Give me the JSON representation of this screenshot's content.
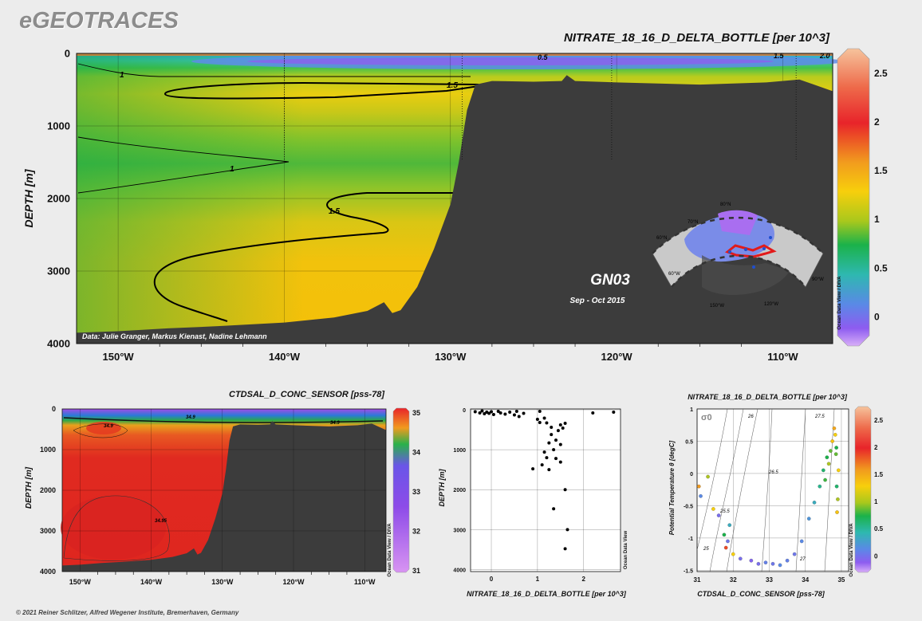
{
  "app": {
    "brand": "eGEOTRACES",
    "copyright": "© 2021 Reiner Schlitzer, Alfred Wegener Institute, Bremerhaven, Germany",
    "credit": "Ocean Data View / DIVA",
    "credit_small": "Ocean Data View"
  },
  "main_section": {
    "title": "NITRATE_18_16_D_DELTA_BOTTLE [per 10^3]",
    "ylabel": "DEPTH [m]",
    "cruise": "GN03",
    "period": "Sep - Oct 2015",
    "data_credit": "Data: Julie Granger, Markus Kienast, Nadine Lehmann",
    "contour_labels": [
      "1",
      "1.5",
      "1",
      "1.5",
      "0.5",
      "1.5",
      "2.0"
    ],
    "map_labels": [
      "80°N",
      "70°N",
      "60°N",
      "150°W",
      "120°W",
      "90°W",
      "60°W"
    ]
  },
  "salinity_section": {
    "title": "CTDSAL_D_CONC_SENSOR [pss-78]",
    "ylabel": "DEPTH [m]",
    "contour_labels": [
      "34.9",
      "34.9",
      "34.9",
      "34.95"
    ]
  },
  "scatter_panel": {
    "xlabel": "NITRATE_18_16_D_DELTA_BOTTLE [per 10^3]",
    "ylabel": "DEPTH [m]"
  },
  "ts_panel": {
    "title": "NITRATE_18_16_D_DELTA_BOTTLE [per 10^3]",
    "xlabel": "CTDSAL_D_CONC_SENSOR [pss-78]",
    "ylabel": "Potential Temperature θ [degC]",
    "sigma_label": "σ0",
    "isopycnal_labels": [
      "25",
      "25.5",
      "26",
      "26.5",
      "27",
      "27.5"
    ]
  },
  "colors": {
    "bottom": "#3c3c3c",
    "nitrate_scale": [
      "#f5b98f",
      "#e8242a",
      "#f19a1e",
      "#f7cf0c",
      "#7ebf2a",
      "#1bb24a",
      "#2eb8b0",
      "#5a89e6",
      "#8d5cf0",
      "#cf9cf8"
    ],
    "salinity_scale": [
      "#e8242a",
      "#f19a1e",
      "#29b14a",
      "#6a55e8",
      "#b55ee8",
      "#d894f2"
    ]
  },
  "chart_data": [
    {
      "id": "nitrate_section",
      "type": "heatmap",
      "title": "NITRATE_18_16_D_DELTA_BOTTLE [per 10^3]",
      "xlabel": "",
      "ylabel": "DEPTH [m]",
      "x_ticks": [
        "150°W",
        "140°W",
        "130°W",
        "120°W",
        "110°W"
      ],
      "y_ticks": [
        "0",
        "1000",
        "2000",
        "3000",
        "4000"
      ],
      "xlim": [
        -152.5,
        -107
      ],
      "ylim": [
        4000,
        0
      ],
      "colorbar": {
        "ticks": [
          "2.5",
          "2",
          "1.5",
          "1",
          "0.5",
          "0"
        ],
        "range": [
          -0.3,
          2.75
        ]
      },
      "bathymetry": [
        [
          -152.5,
          3850
        ],
        [
          -150,
          3830
        ],
        [
          -147,
          3790
        ],
        [
          -144,
          3760
        ],
        [
          -140,
          3710
        ],
        [
          -137,
          3640
        ],
        [
          -135,
          3550
        ],
        [
          -134,
          3430
        ],
        [
          -133.5,
          3580
        ],
        [
          -133,
          3540
        ],
        [
          -132,
          3220
        ],
        [
          -131,
          2700
        ],
        [
          -130,
          2080
        ],
        [
          -129.5,
          1500
        ],
        [
          -129,
          780
        ],
        [
          -128.5,
          430
        ],
        [
          -127.5,
          380
        ],
        [
          -125,
          390
        ],
        [
          -123.3,
          380
        ],
        [
          -123,
          300
        ],
        [
          -122.5,
          380
        ],
        [
          -120,
          400
        ],
        [
          -115,
          430
        ],
        [
          -111,
          400
        ],
        [
          -109,
          360
        ],
        [
          -107,
          520
        ]
      ],
      "stations_lon": [
        -140,
        -129.3,
        -120.3,
        -109.2
      ]
    },
    {
      "id": "salinity_section",
      "type": "heatmap",
      "title": "CTDSAL_D_CONC_SENSOR [pss-78]",
      "ylabel": "DEPTH [m]",
      "x_ticks": [
        "150°W",
        "140°W",
        "130°W",
        "120°W",
        "110°W"
      ],
      "y_ticks": [
        "0",
        "1000",
        "2000",
        "3000",
        "4000"
      ],
      "xlim": [
        -152.5,
        -107
      ],
      "ylim": [
        4000,
        0
      ],
      "colorbar": {
        "ticks": [
          "35",
          "34",
          "33",
          "32",
          "31"
        ],
        "range": [
          31,
          35
        ]
      }
    },
    {
      "id": "nitrate_vs_depth",
      "type": "scatter",
      "xlabel": "NITRATE_18_16_D_DELTA_BOTTLE [per 10^3]",
      "ylabel": "DEPTH [m]",
      "x_ticks": [
        "0",
        "1",
        "2"
      ],
      "y_ticks": [
        "0",
        "1000",
        "2000",
        "3000",
        "4000"
      ],
      "xlim": [
        -0.45,
        2.8
      ],
      "ylim": [
        4050,
        -20
      ],
      "points": [
        [
          -0.35,
          50
        ],
        [
          -0.25,
          80
        ],
        [
          -0.2,
          30
        ],
        [
          -0.15,
          100
        ],
        [
          -0.1,
          60
        ],
        [
          -0.05,
          90
        ],
        [
          0.0,
          50
        ],
        [
          0.05,
          120
        ],
        [
          0.15,
          40
        ],
        [
          0.2,
          80
        ],
        [
          0.3,
          110
        ],
        [
          0.4,
          60
        ],
        [
          0.5,
          130
        ],
        [
          0.55,
          40
        ],
        [
          0.6,
          170
        ],
        [
          0.7,
          90
        ],
        [
          1.05,
          40
        ],
        [
          2.2,
          80
        ],
        [
          2.65,
          60
        ],
        [
          1.0,
          240
        ],
        [
          1.05,
          320
        ],
        [
          1.15,
          210
        ],
        [
          1.2,
          330
        ],
        [
          1.3,
          440
        ],
        [
          1.5,
          380
        ],
        [
          1.6,
          340
        ],
        [
          1.55,
          460
        ],
        [
          1.45,
          520
        ],
        [
          1.3,
          620
        ],
        [
          1.4,
          760
        ],
        [
          1.25,
          830
        ],
        [
          1.5,
          870
        ],
        [
          1.35,
          1000
        ],
        [
          1.15,
          1060
        ],
        [
          1.2,
          1200
        ],
        [
          0.9,
          1480
        ],
        [
          1.1,
          1380
        ],
        [
          1.4,
          1220
        ],
        [
          1.5,
          1310
        ],
        [
          1.25,
          1500
        ],
        [
          1.6,
          2000
        ],
        [
          1.35,
          2480
        ],
        [
          1.65,
          3000
        ],
        [
          1.6,
          3480
        ]
      ]
    },
    {
      "id": "ts_diagram",
      "type": "scatter",
      "title": "NITRATE_18_16_D_DELTA_BOTTLE [per 10^3]",
      "xlabel": "CTDSAL_D_CONC_SENSOR [pss-78]",
      "ylabel": "Potential Temperature θ [degC]",
      "x_ticks": [
        "31",
        "32",
        "33",
        "34",
        "35"
      ],
      "y_ticks": [
        "1",
        "0.5",
        "0",
        "-0.5",
        "-1",
        "-1.5"
      ],
      "xlim": [
        31,
        35.2
      ],
      "ylim": [
        -1.52,
        1.0
      ],
      "colorbar": {
        "ticks": [
          "2.5",
          "2",
          "1.5",
          "1",
          "0.5",
          "0"
        ],
        "range": [
          -0.3,
          2.75
        ]
      },
      "points": [
        [
          31.05,
          -0.2,
          1.9
        ],
        [
          31.1,
          -0.35,
          0.5
        ],
        [
          31.3,
          -0.05,
          1.4
        ],
        [
          31.45,
          -0.55,
          1.5
        ],
        [
          31.6,
          -0.65,
          0.2
        ],
        [
          31.75,
          -0.95,
          1.2
        ],
        [
          31.8,
          -1.15,
          2.1
        ],
        [
          31.85,
          -1.05,
          0.3
        ],
        [
          31.9,
          -0.8,
          0.8
        ],
        [
          32.0,
          -1.25,
          1.5
        ],
        [
          32.2,
          -1.32,
          0.2
        ],
        [
          32.5,
          -1.35,
          0.1
        ],
        [
          32.7,
          -1.4,
          0.2
        ],
        [
          32.9,
          -1.38,
          0.4
        ],
        [
          33.1,
          -1.4,
          0.3
        ],
        [
          33.3,
          -1.42,
          0.5
        ],
        [
          33.5,
          -1.35,
          0.4
        ],
        [
          33.7,
          -1.25,
          0.3
        ],
        [
          33.9,
          -1.05,
          0.5
        ],
        [
          34.1,
          -0.7,
          0.6
        ],
        [
          34.25,
          -0.45,
          0.8
        ],
        [
          34.4,
          -0.2,
          1.0
        ],
        [
          34.5,
          0.05,
          1.1
        ],
        [
          34.55,
          -0.1,
          1.25
        ],
        [
          34.6,
          0.25,
          1.2
        ],
        [
          34.65,
          0.15,
          1.4
        ],
        [
          34.7,
          0.35,
          1.3
        ],
        [
          34.75,
          0.5,
          1.6
        ],
        [
          34.8,
          0.7,
          1.8
        ],
        [
          34.83,
          0.6,
          1.5
        ],
        [
          34.85,
          0.3,
          1.3
        ],
        [
          34.87,
          -0.2,
          1.1
        ],
        [
          34.9,
          -0.4,
          1.4
        ],
        [
          34.88,
          -0.6,
          1.6
        ],
        [
          34.92,
          0.05,
          1.5
        ],
        [
          34.86,
          0.4,
          1.2
        ]
      ]
    }
  ]
}
